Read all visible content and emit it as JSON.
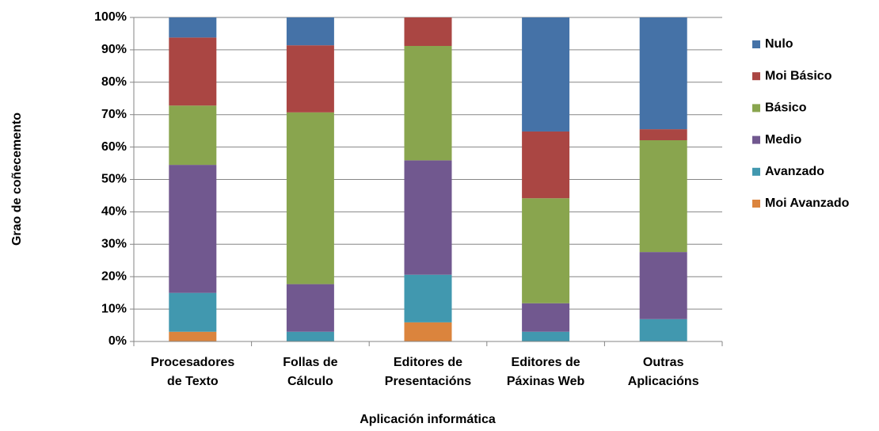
{
  "chart_data": {
    "type": "stacked_bar",
    "y_label": "Grao de coñecemento",
    "x_label": "Aplicación informática",
    "categories": [
      "Procesadores\nde Texto",
      "Follas de\nCálculo",
      "Editores de\nPresentacións",
      "Editores de\nPáxinas Web",
      "Outras\nAplicacións"
    ],
    "series": [
      {
        "name": "Moi Avanzado",
        "color": "#db843d",
        "values": [
          3,
          0,
          5.9,
          0,
          0
        ]
      },
      {
        "name": "Avanzado",
        "color": "#4198af",
        "values": [
          12,
          3,
          14.7,
          3,
          6.9
        ]
      },
      {
        "name": "Medio",
        "color": "#71588f",
        "values": [
          39.5,
          14.7,
          35.3,
          8.8,
          20.7
        ]
      },
      {
        "name": "Básico",
        "color": "#89a54e",
        "values": [
          18.3,
          53,
          35.3,
          32.4,
          34.5
        ]
      },
      {
        "name": "Moi Básico",
        "color": "#aa4643",
        "values": [
          21,
          20.7,
          8.8,
          20.6,
          3.4
        ]
      },
      {
        "name": "Nulo",
        "color": "#4572a7",
        "values": [
          6.2,
          8.6,
          0,
          35.2,
          34.5
        ]
      }
    ],
    "ylim": [
      0,
      100
    ],
    "yticks": [
      {
        "value": 0,
        "label": "0%"
      },
      {
        "value": 10,
        "label": "10%"
      },
      {
        "value": 20,
        "label": "20%"
      },
      {
        "value": 30,
        "label": "30%"
      },
      {
        "value": 40,
        "label": "40%"
      },
      {
        "value": 50,
        "label": "50%"
      },
      {
        "value": 60,
        "label": "60%"
      },
      {
        "value": 70,
        "label": "70%"
      },
      {
        "value": 80,
        "label": "80%"
      },
      {
        "value": 90,
        "label": "90%"
      },
      {
        "value": 100,
        "label": "100%"
      }
    ],
    "grid": true,
    "legend": "right"
  }
}
